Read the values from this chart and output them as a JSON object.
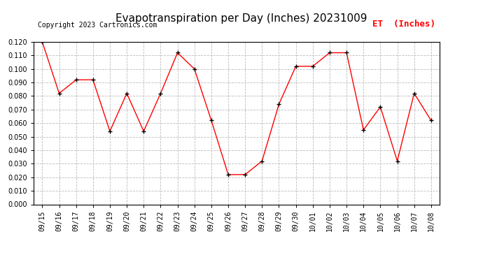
{
  "title": "Evapotranspiration per Day (Inches) 20231009",
  "legend_label": "ET  (Inches)",
  "copyright_text": "Copyright 2023 Cartronics.com",
  "dates": [
    "09/15",
    "09/16",
    "09/17",
    "09/18",
    "09/19",
    "09/20",
    "09/21",
    "09/22",
    "09/23",
    "09/24",
    "09/25",
    "09/26",
    "09/27",
    "09/28",
    "09/29",
    "09/30",
    "10/01",
    "10/02",
    "10/03",
    "10/04",
    "10/05",
    "10/06",
    "10/07",
    "10/08"
  ],
  "values": [
    0.12,
    0.082,
    0.092,
    0.092,
    0.054,
    0.082,
    0.054,
    0.082,
    0.112,
    0.1,
    0.062,
    0.022,
    0.022,
    0.032,
    0.074,
    0.102,
    0.102,
    0.112,
    0.112,
    0.055,
    0.072,
    0.032,
    0.082,
    0.062
  ],
  "ylim": [
    0.0,
    0.12
  ],
  "yticks": [
    0.0,
    0.01,
    0.02,
    0.03,
    0.04,
    0.05,
    0.06,
    0.07,
    0.08,
    0.09,
    0.1,
    0.11,
    0.12
  ],
  "line_color": "red",
  "marker_color": "black",
  "grid_color": "#bbbbbb",
  "background_color": "#ffffff",
  "title_fontsize": 11,
  "tick_fontsize": 7,
  "copyright_fontsize": 7,
  "legend_fontsize": 9,
  "legend_color": "red"
}
